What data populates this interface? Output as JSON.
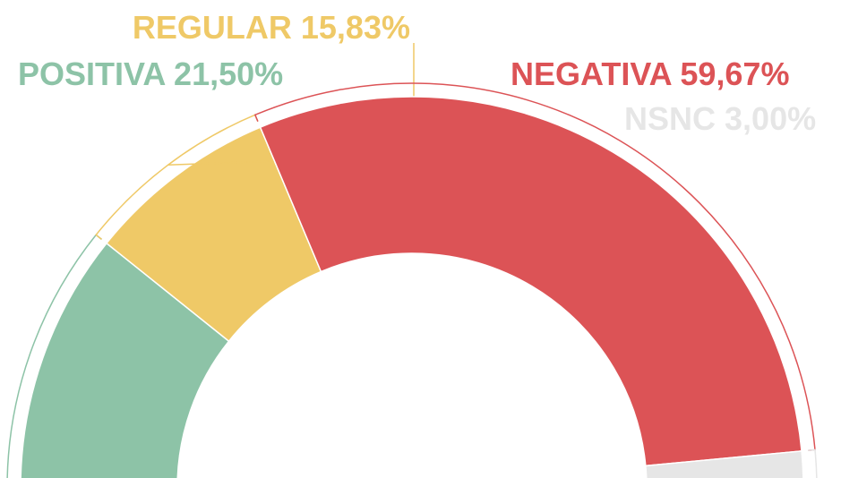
{
  "chart_data": {
    "type": "semi-donut",
    "categories": [
      "POSITIVA",
      "REGULAR",
      "NEGATIVA",
      "NSNC"
    ],
    "values": [
      21.5,
      15.83,
      59.67,
      3.0
    ],
    "value_labels": [
      "21,50%",
      "15,83%",
      "59,67%",
      "3,00%"
    ],
    "colors": [
      "#8dc3a7",
      "#efc967",
      "#dc5356",
      "#e6e6e6"
    ]
  }
}
